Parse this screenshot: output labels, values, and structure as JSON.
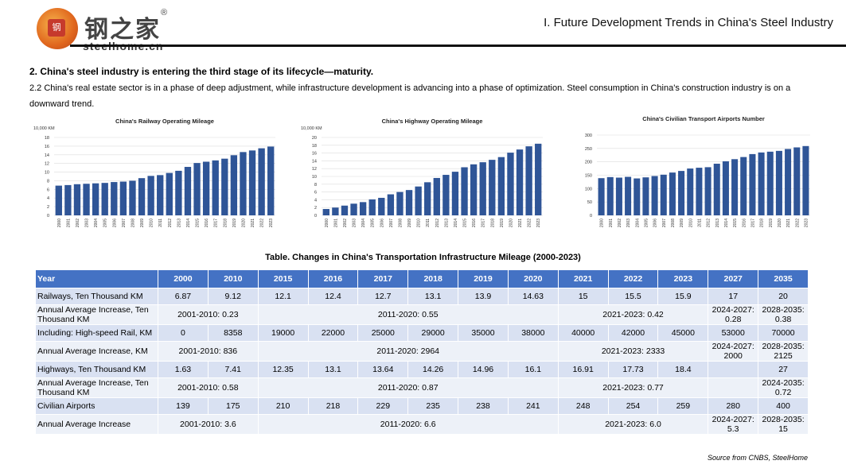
{
  "header": {
    "logo_cn": "钢之家",
    "logo_reg": "®",
    "logo_en": "steelhome.cn",
    "title": "I. Future Development Trends in China's Steel Industry"
  },
  "heading": "2. China's steel industry is entering the third stage of its lifecycle—maturity.",
  "paragraph": "2.2 China's real estate sector is in a phase of deep adjustment, while infrastructure development is advancing into a phase of optimization. Steel consumption in China's construction industry is on a downward trend.",
  "colors": {
    "bar": "#2f5597",
    "header_bg": "#4472c4",
    "row_odd": "#d9e1f2",
    "row_even": "#edf1f8"
  },
  "chart_data": [
    {
      "type": "bar",
      "title": "China's Railway Operating Mileage",
      "unit_label": "10,000 KM",
      "categories": [
        "2000",
        "2001",
        "2002",
        "2003",
        "2004",
        "2005",
        "2006",
        "2007",
        "2008",
        "2009",
        "2010",
        "2011",
        "2012",
        "2013",
        "2014",
        "2015",
        "2016",
        "2017",
        "2018",
        "2019",
        "2020",
        "2021",
        "2022",
        "2023"
      ],
      "values": [
        6.87,
        7.0,
        7.2,
        7.3,
        7.4,
        7.5,
        7.7,
        7.8,
        8.0,
        8.6,
        9.12,
        9.3,
        9.8,
        10.3,
        11.2,
        12.1,
        12.4,
        12.7,
        13.1,
        13.9,
        14.63,
        15,
        15.5,
        15.9
      ],
      "yticks": [
        0,
        2,
        4,
        6,
        8,
        10,
        12,
        14,
        16,
        18
      ],
      "ylim": [
        0,
        18
      ]
    },
    {
      "type": "bar",
      "title": "China's Highway Operating Mileage",
      "unit_label": "10,000 KM",
      "categories": [
        "2000",
        "2001",
        "2002",
        "2003",
        "2004",
        "2005",
        "2006",
        "2007",
        "2008",
        "2009",
        "2010",
        "2011",
        "2012",
        "2013",
        "2014",
        "2015",
        "2016",
        "2017",
        "2018",
        "2019",
        "2020",
        "2021",
        "2022",
        "2023"
      ],
      "values": [
        1.63,
        2.0,
        2.5,
        3.0,
        3.4,
        4.1,
        4.5,
        5.4,
        6.0,
        6.5,
        7.41,
        8.5,
        9.6,
        10.4,
        11.2,
        12.35,
        13.1,
        13.64,
        14.26,
        14.96,
        16.1,
        16.91,
        17.73,
        18.4
      ],
      "yticks": [
        0,
        2,
        4,
        6,
        8,
        10,
        12,
        14,
        16,
        18,
        20
      ],
      "ylim": [
        0,
        20
      ]
    },
    {
      "type": "bar",
      "title": "China's Civilian Transport Airports Number",
      "unit_label": "",
      "categories": [
        "2000",
        "2001",
        "2002",
        "2003",
        "2004",
        "2005",
        "2006",
        "2007",
        "2008",
        "2009",
        "2010",
        "2011",
        "2012",
        "2013",
        "2014",
        "2015",
        "2016",
        "2017",
        "2018",
        "2019",
        "2020",
        "2021",
        "2022",
        "2023"
      ],
      "values": [
        139,
        143,
        141,
        144,
        138,
        142,
        147,
        152,
        160,
        166,
        175,
        178,
        180,
        193,
        202,
        210,
        218,
        229,
        235,
        238,
        241,
        248,
        254,
        259
      ],
      "yticks": [
        0,
        50,
        100,
        150,
        200,
        250,
        300
      ],
      "ylim": [
        0,
        300
      ]
    }
  ],
  "table": {
    "caption": "Table. Changes in China's Transportation Infrastructure Mileage (2000-2023)",
    "headers": [
      "Year",
      "2000",
      "2010",
      "2015",
      "2016",
      "2017",
      "2018",
      "2019",
      "2020",
      "2021",
      "2022",
      "2023",
      "2027",
      "2035"
    ],
    "rows": [
      {
        "label": "Railways, Ten Thousand KM",
        "cells": [
          "6.87",
          "9.12",
          "12.1",
          "12.4",
          "12.7",
          "13.1",
          "13.9",
          "14.63",
          "15",
          "15.5",
          "15.9",
          "17",
          "20"
        ]
      },
      {
        "label": "Annual Average Increase, Ten Thousand KM",
        "cells": [
          "2001-2010: 0.23",
          "2011-2020: 0.55",
          "2021-2023: 0.42",
          "2024-2027: 0.28",
          "2028-2035: 0.38"
        ]
      },
      {
        "label": "Including: High-speed Rail, KM",
        "cells": [
          "0",
          "8358",
          "19000",
          "22000",
          "25000",
          "29000",
          "35000",
          "38000",
          "40000",
          "42000",
          "45000",
          "53000",
          "70000"
        ]
      },
      {
        "label": "Annual Average Increase, KM",
        "cells": [
          "2001-2010: 836",
          "2011-2020: 2964",
          "2021-2023: 2333",
          "2024-2027: 2000",
          "2028-2035: 2125"
        ]
      },
      {
        "label": "Highways, Ten Thousand KM",
        "cells": [
          "1.63",
          "7.41",
          "12.35",
          "13.1",
          "13.64",
          "14.26",
          "14.96",
          "16.1",
          "16.91",
          "17.73",
          "18.4",
          "",
          "27"
        ]
      },
      {
        "label": "Annual Average Increase, Ten Thousand KM",
        "cells": [
          "2001-2010: 0.58",
          "2011-2020: 0.87",
          "2021-2023: 0.77",
          "",
          "2024-2035: 0.72"
        ]
      },
      {
        "label": "Civilian Airports",
        "cells": [
          "139",
          "175",
          "210",
          "218",
          "229",
          "235",
          "238",
          "241",
          "248",
          "254",
          "259",
          "280",
          "400"
        ]
      },
      {
        "label": "Annual Average Increase",
        "cells": [
          "2001-2010: 3.6",
          "2011-2020: 6.6",
          "2021-2023: 6.0",
          "2024-2027: 5.3",
          "2028-2035: 15"
        ]
      }
    ]
  },
  "source": "Source from CNBS, SteelHome"
}
